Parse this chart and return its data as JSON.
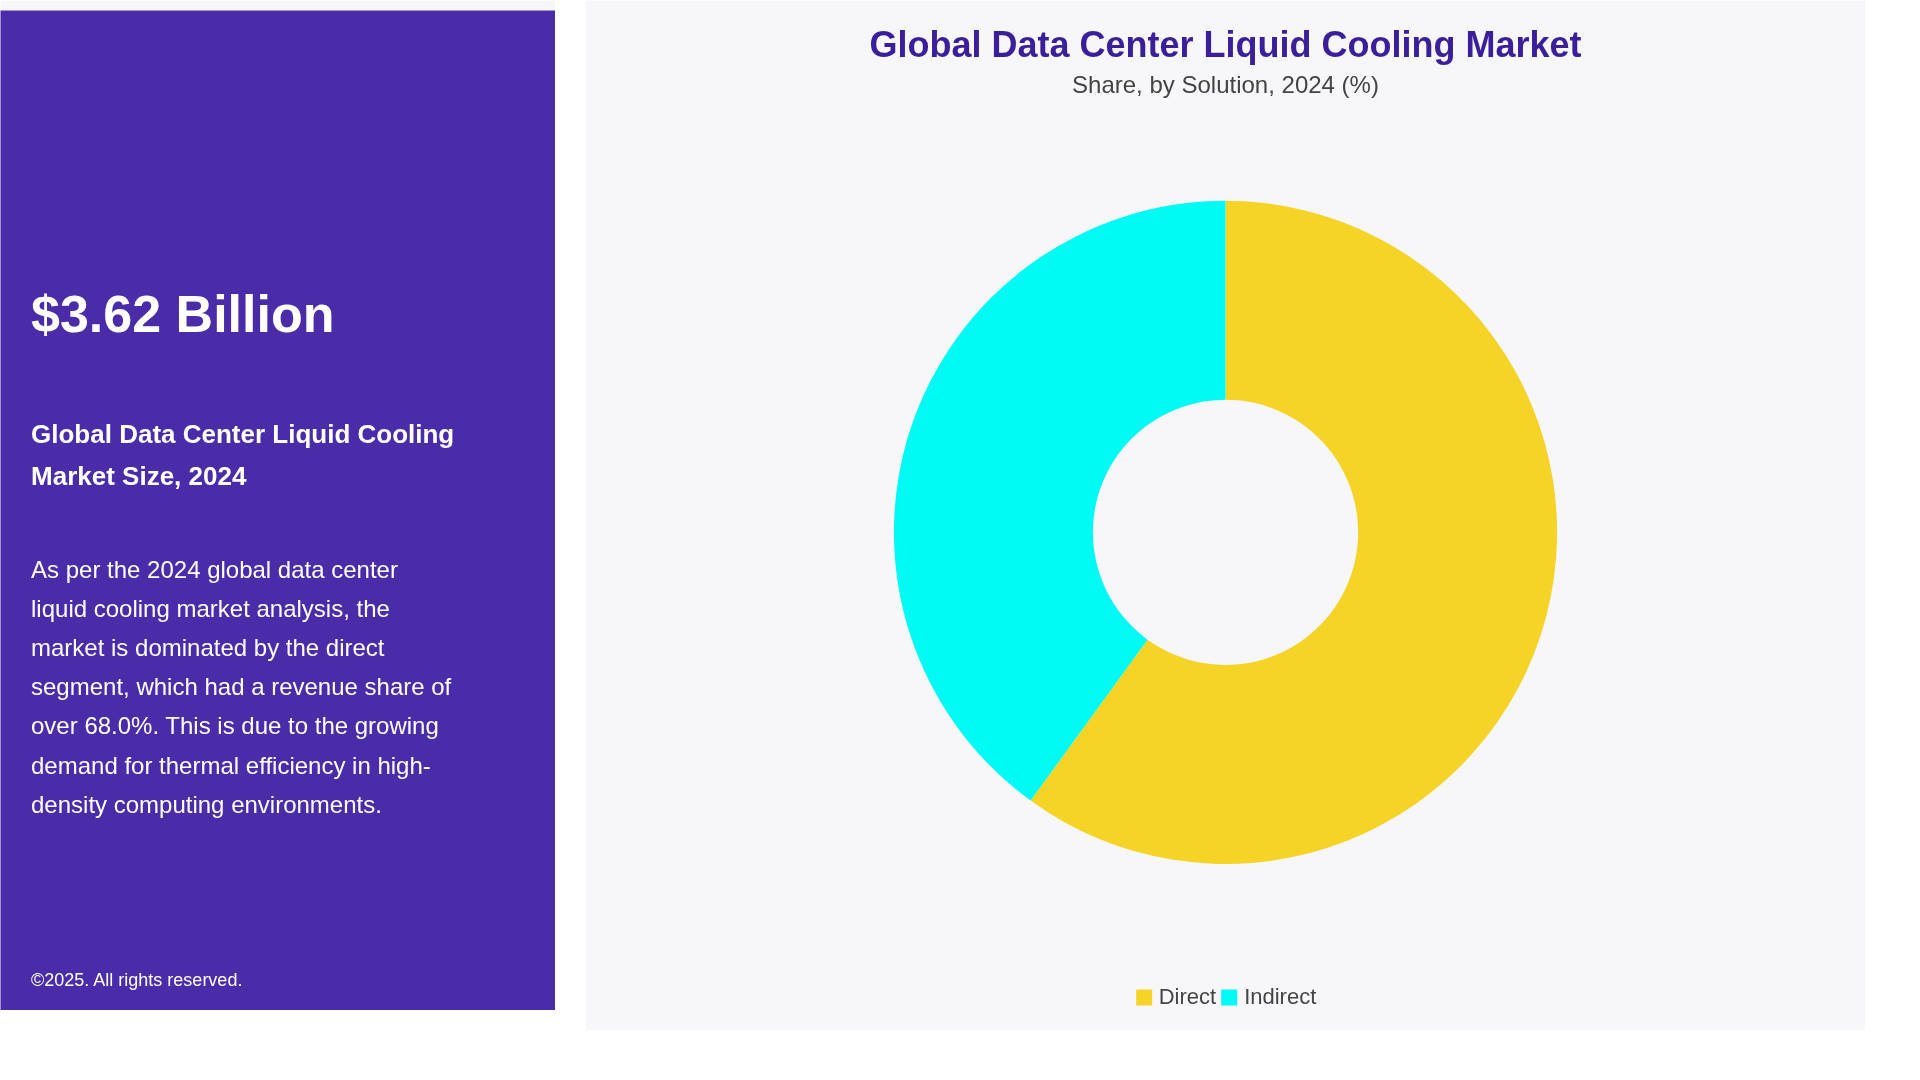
{
  "chart_data": [
    {
      "type": "other",
      "title": "$3.62 Billion",
      "subtitle": "Global Data Center Liquid Cooling Market Size, 2024",
      "annotations": [
        "As per the 2024 global data center liquid cooling market analysis, the market is dominated by the direct segment, which had a revenue share of over 68.0%. This is due to the growing demand for thermal efficiency in high-density computing environments.",
        "©2025. All rights reserved."
      ]
    },
    {
      "type": "donut",
      "title": "Global Data Center Liquid Cooling Market",
      "subtitle": "Share, by Solution, 2024 (%)",
      "categories": [
        "Direct",
        "Indirect"
      ],
      "values": [
        60,
        40
      ],
      "colors": [
        "#f5d327",
        "#00fbf5"
      ],
      "legend": "bottom"
    }
  ]
}
